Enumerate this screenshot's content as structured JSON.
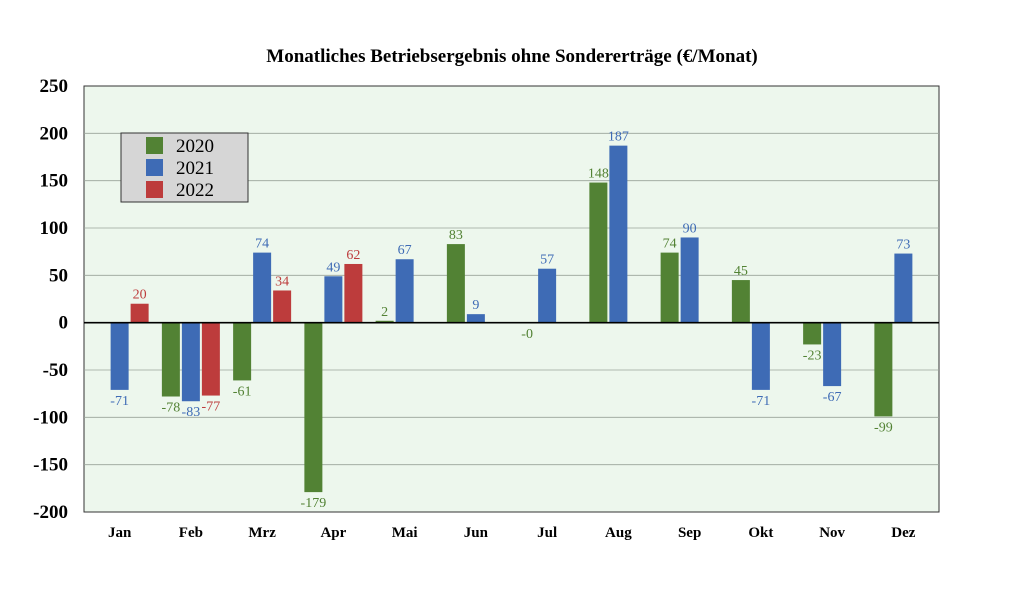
{
  "chart_data": {
    "type": "bar",
    "title": "Monatliches Betriebsergebnis ohne Sondererträge (€/Monat)",
    "xlabel": "",
    "ylabel": "",
    "ylim": [
      -200,
      250
    ],
    "yticks": [
      250,
      200,
      150,
      100,
      50,
      0,
      -50,
      -100,
      -150,
      -200
    ],
    "grid": true,
    "legend_position": "top-left",
    "categories": [
      "Jan",
      "Feb",
      "Mrz",
      "Apr",
      "Mai",
      "Jun",
      "Jul",
      "Aug",
      "Sep",
      "Okt",
      "Nov",
      "Dez"
    ],
    "series": [
      {
        "name": "2020",
        "color": "#528234",
        "values": [
          null,
          -78,
          -61,
          -179,
          2,
          83,
          -0.2,
          148,
          74,
          45,
          -23,
          -99
        ],
        "labels": [
          "",
          "-78",
          "-61",
          "-179",
          "2",
          "83",
          "-0",
          "148",
          "74",
          "45",
          "-23",
          "-99"
        ]
      },
      {
        "name": "2021",
        "color": "#3e6bb5",
        "values": [
          -71,
          -83,
          74,
          49,
          67,
          9,
          57,
          187,
          90,
          -71,
          -67,
          73
        ],
        "labels": [
          "-71",
          "-83",
          "74",
          "49",
          "67",
          "9",
          "57",
          "187",
          "90",
          "-71",
          "-67",
          "73"
        ]
      },
      {
        "name": "2022",
        "color": "#bd3c3c",
        "values": [
          20,
          -77,
          34,
          62,
          null,
          null,
          null,
          null,
          null,
          null,
          null,
          null
        ],
        "labels": [
          "20",
          "-77",
          "34",
          "62",
          "",
          "",
          "",
          "",
          "",
          "",
          "",
          ""
        ]
      }
    ],
    "colors": {
      "plot_background": "#edf7ed",
      "legend_background": "#d6d6d6",
      "grid": "#9aa39a"
    }
  }
}
